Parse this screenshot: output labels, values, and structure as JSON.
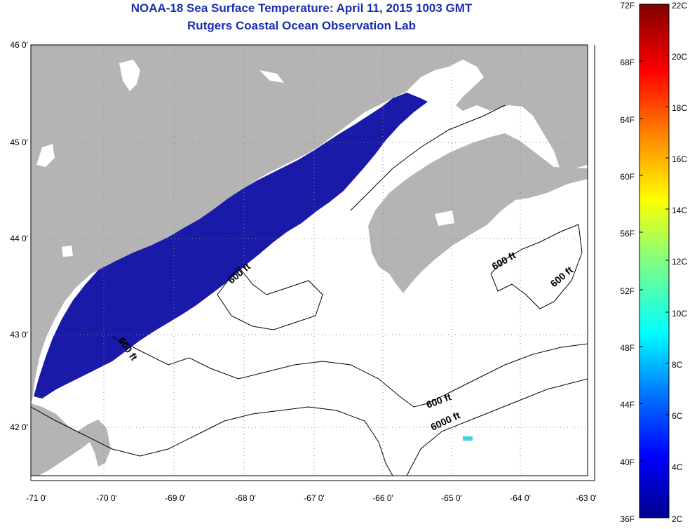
{
  "title": {
    "line1": "NOAA-18 Sea Surface Temperature:  April 11, 2015 1003 GMT",
    "line2": "Rutgers Coastal Ocean Observation Lab"
  },
  "axes": {
    "lon_ticks": [
      "-71 0'",
      "-70 0'",
      "-69 0'",
      "-68 0'",
      "-67 0'",
      "-66 0'",
      "-65 0'",
      "-64 0'",
      "-63 0'"
    ],
    "lat_ticks": [
      "46 0'",
      "45 0'",
      "44 0'",
      "43 0'",
      "42 0'"
    ]
  },
  "contour_labels": [
    "600 ft",
    "600 ft",
    "600 ft",
    "600 ft",
    "600 ft",
    "6000 ft"
  ],
  "colorbar": {
    "f_labels": [
      "72F",
      "68F",
      "64F",
      "60F",
      "56F",
      "52F",
      "48F",
      "44F",
      "40F",
      "36F"
    ],
    "c_labels": [
      "22C",
      "20C",
      "18C",
      "16C",
      "14C",
      "12C",
      "10C",
      "8C",
      "6C",
      "4C",
      "2C"
    ]
  },
  "colors": {
    "land": "#b4b4b4",
    "water_cold": "#1a1aa8",
    "title": "#1a2fb0"
  }
}
